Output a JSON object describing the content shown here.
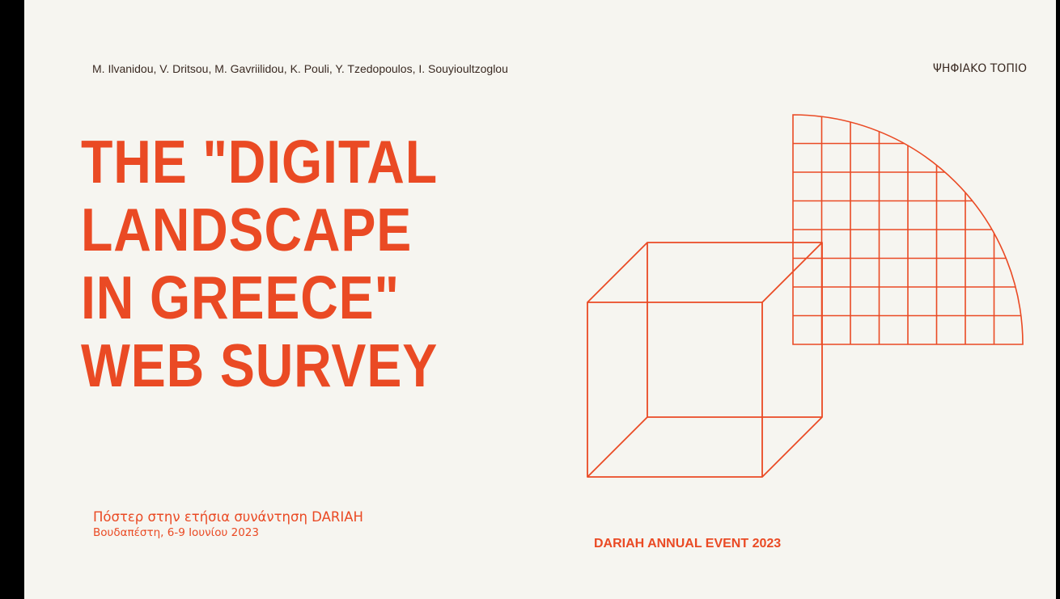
{
  "slide": {
    "authors": "M. Ilvanidou, V. Dritsou, M. Gavriilidou, K. Pouli, Y. Tzedopoulos, I. Souyioultzoglou",
    "corner_tag": "ΨΗΦΙΑΚΟ ΤΟΠΙΟ",
    "title_lines": [
      "THE \"DIGITAL",
      "LANDSCAPE",
      "IN GREECE\"",
      "WEB SURVEY"
    ],
    "subtitle": {
      "line1": "Πόστερ στην ετήσια συνάντηση DARIAH",
      "line2": "Βουδαπέστη, 6-9 Ιουνίου 2023"
    },
    "event": "DARIAH ANNUAL EVENT 2023"
  },
  "theme": {
    "background": "#f6f5f0",
    "accent": "#ea4a24",
    "frame": "#000000",
    "text": "#3a2a22"
  },
  "graphics": {
    "shapes": [
      "wireframe-cube-icon",
      "grid-quarter-circle-icon"
    ]
  }
}
